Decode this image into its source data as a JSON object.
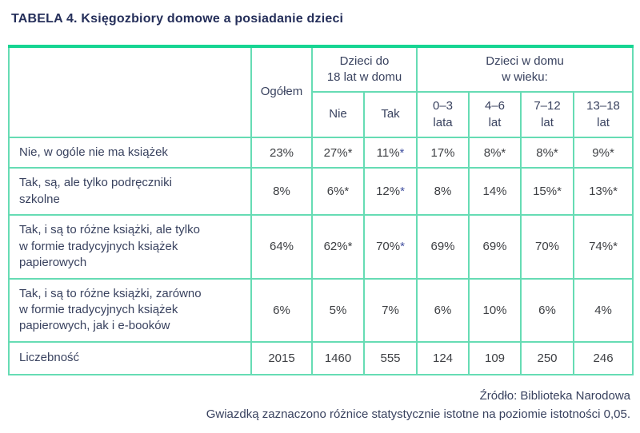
{
  "title": "TABELA 4. Księgozbiory domowe a posiadanie dzieci",
  "colors": {
    "accent_green": "#17d592",
    "grid_green": "#66dcb4",
    "title_navy": "#252f5a",
    "text_navy": "#39425f",
    "number_gray": "#3e4044",
    "asterisk_blue": "#4250a0"
  },
  "table": {
    "header": {
      "ogolem": "Ogółem",
      "group_children": {
        "label": "Dzieci do\n18 lat w domu",
        "subcols": [
          "Nie",
          "Tak"
        ]
      },
      "group_age": {
        "label": "Dzieci w domu\nw wieku:",
        "subcols": [
          "0–3\nlata",
          "4–6\nlat",
          "7–12\nlat",
          "13–18\nlat"
        ]
      }
    },
    "accent_asterisk_column_index": 2,
    "rows": [
      {
        "label": "Nie, w ogóle nie ma książek",
        "values": [
          "23%",
          "27%*",
          "11%*",
          "17%",
          "8%*",
          "8%*",
          "9%*"
        ]
      },
      {
        "label": "Tak, są, ale tylko podręczniki\nszkolne",
        "values": [
          "8%",
          "6%*",
          "12%*",
          "8%",
          "14%",
          "15%*",
          "13%*"
        ]
      },
      {
        "label": "Tak, i są to różne książki, ale tylko\nw formie tradycyjnych książek\npapierowych",
        "values": [
          "64%",
          "62%*",
          "70%*",
          "69%",
          "69%",
          "70%",
          "74%*"
        ]
      },
      {
        "label": "Tak, i są to różne książki, zarówno\nw formie tradycyjnych książek\npapierowych, jak i e-booków",
        "values": [
          "6%",
          "5%",
          "7%",
          "6%",
          "10%",
          "6%",
          "4%"
        ]
      },
      {
        "label": "Liczebność",
        "values": [
          "2015",
          "1460",
          "555",
          "124",
          "109",
          "250",
          "246"
        ]
      }
    ]
  },
  "footer": {
    "source": "Źródło: Biblioteka Narodowa",
    "note": "Gwiazdką zaznaczono różnice statystycznie istotne na poziomie istotności 0,05."
  }
}
